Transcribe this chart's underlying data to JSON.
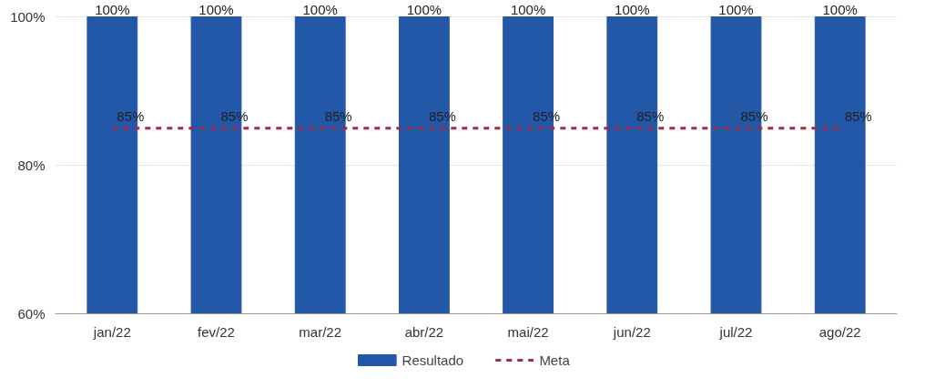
{
  "chart_data": {
    "type": "bar",
    "categories": [
      "jan/22",
      "fev/22",
      "mar/22",
      "abr/22",
      "mai/22",
      "jun/22",
      "jul/22",
      "ago/22"
    ],
    "series": [
      {
        "name": "Resultado",
        "color": "#2357a8",
        "values": [
          100,
          100,
          100,
          100,
          100,
          100,
          100,
          100
        ],
        "value_labels": [
          "100%",
          "100%",
          "100%",
          "100%",
          "100%",
          "100%",
          "100%",
          "100%"
        ]
      },
      {
        "name": "Meta",
        "type": "line",
        "color": "#9e2a45",
        "line_style": "dashed",
        "values": [
          85,
          85,
          85,
          85,
          85,
          85,
          85,
          85
        ],
        "value_labels": [
          "85%",
          "85%",
          "85%",
          "85%",
          "85%",
          "85%",
          "85%",
          "85%"
        ]
      }
    ],
    "ylim": [
      60,
      100
    ],
    "yticks": [
      {
        "value": 60,
        "label": "60%"
      },
      {
        "value": 80,
        "label": "80%"
      },
      {
        "value": 100,
        "label": "100%"
      }
    ],
    "grid": "y",
    "legend": "bottom"
  }
}
